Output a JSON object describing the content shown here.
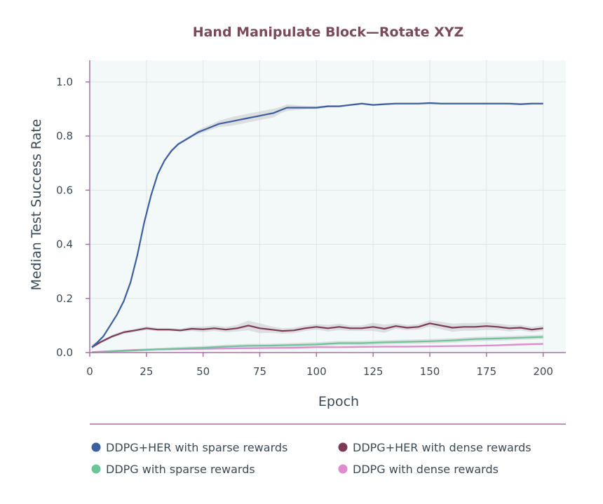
{
  "colors": {
    "title": "#7a4a5c",
    "plot_bg": "#f3f8f8",
    "grid": "#dde6ea",
    "axis": "#a870a5",
    "band": "#c8c8cc"
  },
  "chart_data": {
    "type": "line",
    "title": "Hand Manipulate Block—Rotate XYZ",
    "xlabel": "Epoch",
    "ylabel": "Median Test Success Rate",
    "xlim": [
      0,
      210
    ],
    "ylim": [
      0,
      1.08
    ],
    "xticks": [
      0,
      25,
      50,
      75,
      100,
      125,
      150,
      175,
      200
    ],
    "yticks": [
      0.0,
      0.2,
      0.4,
      0.6,
      0.8,
      1.0
    ],
    "xtick_labels": [
      "0",
      "25",
      "50",
      "75",
      "100",
      "125",
      "150",
      "175",
      "200"
    ],
    "ytick_labels": [
      "0.0",
      "0.2",
      "0.4",
      "0.6",
      "0.8",
      "1.0"
    ],
    "grid": true,
    "legend_position": "bottom",
    "series": [
      {
        "name": "DDPG+HER with sparse rewards",
        "color": "#3c5fa0",
        "x": [
          1,
          3,
          6,
          9,
          12,
          15,
          18,
          21,
          24,
          27,
          30,
          33,
          36,
          39,
          42,
          45,
          48,
          51,
          54,
          57,
          60,
          63,
          66,
          69,
          72,
          75,
          78,
          81,
          84,
          87,
          90,
          95,
          100,
          105,
          110,
          115,
          120,
          125,
          130,
          135,
          140,
          145,
          150,
          155,
          160,
          165,
          170,
          175,
          180,
          185,
          190,
          195,
          200
        ],
        "y": [
          0.02,
          0.035,
          0.06,
          0.1,
          0.14,
          0.19,
          0.26,
          0.36,
          0.48,
          0.58,
          0.66,
          0.71,
          0.745,
          0.77,
          0.785,
          0.8,
          0.815,
          0.825,
          0.835,
          0.845,
          0.85,
          0.855,
          0.86,
          0.865,
          0.87,
          0.875,
          0.88,
          0.885,
          0.895,
          0.905,
          0.905,
          0.905,
          0.905,
          0.91,
          0.91,
          0.915,
          0.92,
          0.915,
          0.918,
          0.92,
          0.92,
          0.92,
          0.922,
          0.92,
          0.92,
          0.92,
          0.92,
          0.92,
          0.92,
          0.92,
          0.918,
          0.92,
          0.92
        ],
        "band": [
          0.01,
          0.005,
          0.005,
          0.005,
          0.005,
          0.005,
          0.005,
          0.005,
          0.005,
          0.005,
          0.005,
          0.005,
          0.005,
          0.005,
          0.005,
          0.005,
          0.008,
          0.01,
          0.01,
          0.012,
          0.014,
          0.016,
          0.016,
          0.016,
          0.016,
          0.016,
          0.016,
          0.016,
          0.012,
          0.012,
          0.01,
          0.006,
          0.005,
          0.004,
          0.004,
          0.004,
          0.004,
          0.004,
          0.004,
          0.004,
          0.004,
          0.004,
          0.004,
          0.004,
          0.004,
          0.004,
          0.004,
          0.004,
          0.004,
          0.004,
          0.004,
          0.004,
          0.004
        ]
      },
      {
        "name": "DDPG+HER with dense rewards",
        "color": "#7b3a55",
        "x": [
          1,
          5,
          10,
          15,
          20,
          25,
          30,
          35,
          40,
          45,
          50,
          55,
          60,
          65,
          70,
          75,
          80,
          85,
          90,
          95,
          100,
          105,
          110,
          115,
          120,
          125,
          130,
          135,
          140,
          145,
          150,
          155,
          160,
          165,
          170,
          175,
          180,
          185,
          190,
          195,
          200
        ],
        "y": [
          0.02,
          0.04,
          0.06,
          0.075,
          0.082,
          0.09,
          0.085,
          0.085,
          0.082,
          0.088,
          0.086,
          0.09,
          0.085,
          0.09,
          0.1,
          0.09,
          0.085,
          0.08,
          0.082,
          0.09,
          0.095,
          0.09,
          0.095,
          0.09,
          0.09,
          0.095,
          0.088,
          0.098,
          0.092,
          0.095,
          0.108,
          0.1,
          0.092,
          0.095,
          0.095,
          0.098,
          0.095,
          0.09,
          0.092,
          0.085,
          0.09
        ],
        "band": [
          0.005,
          0.005,
          0.006,
          0.006,
          0.006,
          0.007,
          0.006,
          0.006,
          0.006,
          0.008,
          0.01,
          0.01,
          0.01,
          0.012,
          0.018,
          0.018,
          0.012,
          0.01,
          0.01,
          0.01,
          0.01,
          0.012,
          0.012,
          0.01,
          0.01,
          0.015,
          0.015,
          0.01,
          0.01,
          0.01,
          0.012,
          0.014,
          0.015,
          0.014,
          0.014,
          0.014,
          0.012,
          0.012,
          0.01,
          0.01,
          0.01
        ]
      },
      {
        "name": "DDPG with sparse rewards",
        "color": "#6cc49a",
        "x": [
          1,
          10,
          20,
          30,
          40,
          50,
          60,
          70,
          80,
          90,
          100,
          110,
          120,
          130,
          140,
          150,
          160,
          170,
          180,
          190,
          200
        ],
        "y": [
          0.0,
          0.005,
          0.008,
          0.012,
          0.015,
          0.018,
          0.022,
          0.025,
          0.026,
          0.028,
          0.03,
          0.035,
          0.035,
          0.038,
          0.04,
          0.042,
          0.045,
          0.05,
          0.052,
          0.055,
          0.058
        ],
        "band": [
          0.002,
          0.003,
          0.004,
          0.005,
          0.006,
          0.006,
          0.007,
          0.007,
          0.007,
          0.008,
          0.008,
          0.008,
          0.008,
          0.008,
          0.008,
          0.008,
          0.008,
          0.008,
          0.008,
          0.008,
          0.008
        ]
      },
      {
        "name": "DDPG with dense rewards",
        "color": "#e08ad0",
        "x": [
          1,
          10,
          20,
          30,
          40,
          50,
          60,
          70,
          80,
          90,
          100,
          110,
          120,
          130,
          140,
          150,
          160,
          170,
          180,
          190,
          200
        ],
        "y": [
          0.002,
          0.006,
          0.01,
          0.012,
          0.013,
          0.014,
          0.015,
          0.016,
          0.017,
          0.018,
          0.02,
          0.02,
          0.021,
          0.022,
          0.022,
          0.023,
          0.024,
          0.025,
          0.027,
          0.03,
          0.032
        ],
        "band": [
          0.002,
          0.002,
          0.003,
          0.003,
          0.003,
          0.003,
          0.003,
          0.003,
          0.003,
          0.003,
          0.003,
          0.003,
          0.003,
          0.003,
          0.003,
          0.003,
          0.003,
          0.003,
          0.003,
          0.004,
          0.004
        ]
      }
    ]
  }
}
